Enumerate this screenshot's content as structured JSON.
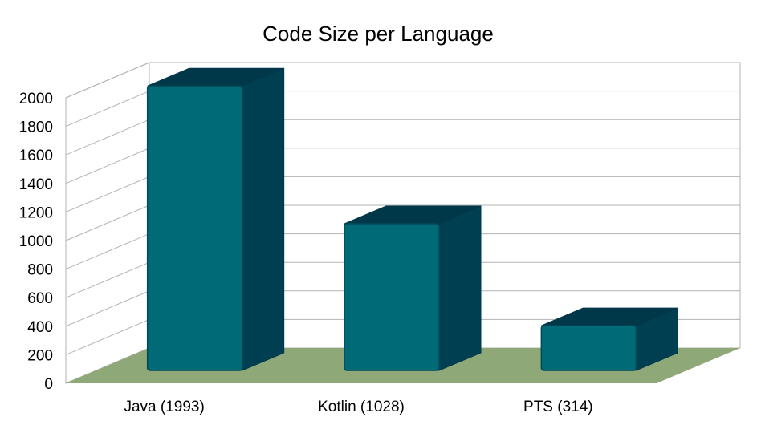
{
  "chart_data": {
    "type": "bar",
    "title": "Code Size per Language",
    "xlabel": "",
    "ylabel": "",
    "categories": [
      "Java (1993)",
      "Kotlin (1028)",
      "PTS (314)"
    ],
    "values": [
      1993,
      1028,
      314
    ],
    "ylim": [
      0,
      2000
    ],
    "yticks": [
      "0",
      "200",
      "400",
      "600",
      "800",
      "1000",
      "1200",
      "1400",
      "1600",
      "1800",
      "2000"
    ],
    "grid": true,
    "legend": "none",
    "style": "3d",
    "colors": {
      "bar_front": "#006b77",
      "bar_side": "#003f52",
      "bar_top": "#00384a",
      "bar_edge": "#004a5a",
      "floor": "#8fa878",
      "grid": "#b3b3b3"
    }
  }
}
